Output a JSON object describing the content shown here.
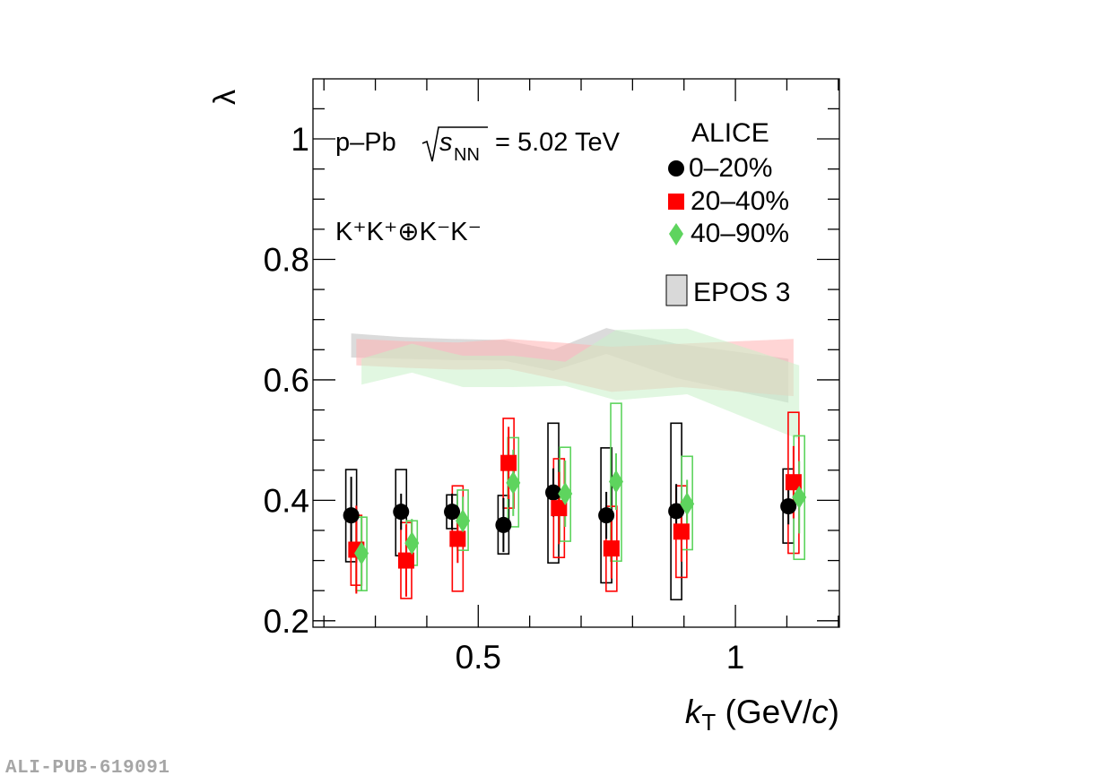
{
  "chart_data": {
    "type": "scatter",
    "title": "",
    "xlabel": "k_T (GeV/c)",
    "xlabel_parts": {
      "symbol": "k",
      "subscript": "T",
      "unit_open": " (GeV/",
      "unit_italic": "c",
      "unit_close": ")"
    },
    "ylabel": "λ",
    "xlim": [
      0.1787,
      1.2021
    ],
    "ylim": [
      0.1893,
      1.0997
    ],
    "x_ticks": [
      {
        "value": 0.5,
        "label": "0.5"
      },
      {
        "value": 1.0,
        "label": "1"
      }
    ],
    "y_ticks": [
      {
        "value": 0.2,
        "label": "0.2"
      },
      {
        "value": 0.4,
        "label": "0.4"
      },
      {
        "value": 0.6,
        "label": "0.6"
      },
      {
        "value": 0.8,
        "label": "0.8"
      },
      {
        "value": 1.0,
        "label": "1"
      }
    ],
    "grid": false,
    "annotations": {
      "system_prefix": "p–Pb",
      "sqrt_s": "s",
      "sqrt_sub": "NN",
      "energy": "= 5.02 TeV",
      "pair": "K⁺K⁺⊕K⁻K⁻"
    },
    "legend": {
      "placement": "top-right",
      "header": "ALICE",
      "entries": [
        "0–20%",
        "20–40%",
        "40–90%"
      ],
      "model": "EPOS 3"
    },
    "series": [
      {
        "name": "0–20%",
        "color": "#000000",
        "marker": "circle",
        "x": [
          0.253,
          0.35,
          0.449,
          0.549,
          0.646,
          0.749,
          0.885,
          1.103
        ],
        "y": [
          0.375,
          0.381,
          0.381,
          0.359,
          0.413,
          0.375,
          0.382,
          0.39
        ],
        "stat": [
          0.064,
          0.03,
          0.03,
          0.045,
          0.04,
          0.039,
          0.045,
          0.03
        ],
        "syst_lo": [
          0.298,
          0.308,
          0.353,
          0.311,
          0.296,
          0.263,
          0.235,
          0.329
        ],
        "syst_hi": [
          0.451,
          0.451,
          0.409,
          0.408,
          0.528,
          0.487,
          0.528,
          0.452
        ]
      },
      {
        "name": "20–40%",
        "color": "#ff0000",
        "marker": "square",
        "x": [
          0.263,
          0.36,
          0.46,
          0.559,
          0.657,
          0.759,
          0.895,
          1.113
        ],
        "y": [
          0.318,
          0.3,
          0.336,
          0.462,
          0.387,
          0.32,
          0.348,
          0.43
        ],
        "stat": [
          0.073,
          0.06,
          0.04,
          0.06,
          0.06,
          0.05,
          0.05,
          0.06
        ],
        "syst_lo": [
          0.259,
          0.237,
          0.249,
          0.387,
          0.305,
          0.249,
          0.272,
          0.312
        ],
        "syst_hi": [
          0.375,
          0.363,
          0.424,
          0.536,
          0.469,
          0.39,
          0.424,
          0.546
        ]
      },
      {
        "name": "40–90%",
        "color": "#5ed45e",
        "marker": "diamond",
        "x": [
          0.273,
          0.371,
          0.47,
          0.568,
          0.669,
          0.768,
          0.906,
          1.124
        ],
        "y": [
          0.312,
          0.329,
          0.366,
          0.429,
          0.411,
          0.431,
          0.394,
          0.405
        ],
        "stat": [
          0.062,
          0.04,
          0.04,
          0.055,
          0.055,
          0.047,
          0.04,
          0.06
        ],
        "syst_lo": [
          0.25,
          0.292,
          0.317,
          0.356,
          0.332,
          0.299,
          0.318,
          0.302
        ],
        "syst_hi": [
          0.372,
          0.366,
          0.417,
          0.504,
          0.488,
          0.561,
          0.473,
          0.507
        ]
      }
    ],
    "epos_bands": [
      {
        "name": "EPOS 3 0–20%",
        "color": "#bdbdbd",
        "x": [
          0.253,
          0.35,
          0.449,
          0.549,
          0.646,
          0.749,
          0.885,
          1.103
        ],
        "lo": [
          0.637,
          0.635,
          0.633,
          0.632,
          0.615,
          0.643,
          0.603,
          0.562
        ],
        "hi": [
          0.677,
          0.671,
          0.668,
          0.666,
          0.65,
          0.686,
          0.66,
          0.635
        ]
      },
      {
        "name": "EPOS 3 20–40%",
        "color": "#ffb3b3",
        "x": [
          0.263,
          0.36,
          0.46,
          0.559,
          0.657,
          0.759,
          0.895,
          1.113
        ],
        "lo": [
          0.624,
          0.62,
          0.617,
          0.618,
          0.6,
          0.58,
          0.588,
          0.573
        ],
        "hi": [
          0.668,
          0.664,
          0.662,
          0.668,
          0.662,
          0.655,
          0.66,
          0.668
        ]
      },
      {
        "name": "EPOS 3 40–90%",
        "color": "#c8f0c8",
        "x": [
          0.273,
          0.371,
          0.47,
          0.568,
          0.669,
          0.768,
          0.906,
          1.124
        ],
        "lo": [
          0.592,
          0.612,
          0.588,
          0.588,
          0.59,
          0.566,
          0.576,
          0.501
        ],
        "hi": [
          0.635,
          0.66,
          0.64,
          0.64,
          0.63,
          0.683,
          0.685,
          0.624
        ]
      }
    ]
  },
  "watermark": "ALI-PUB-619091"
}
